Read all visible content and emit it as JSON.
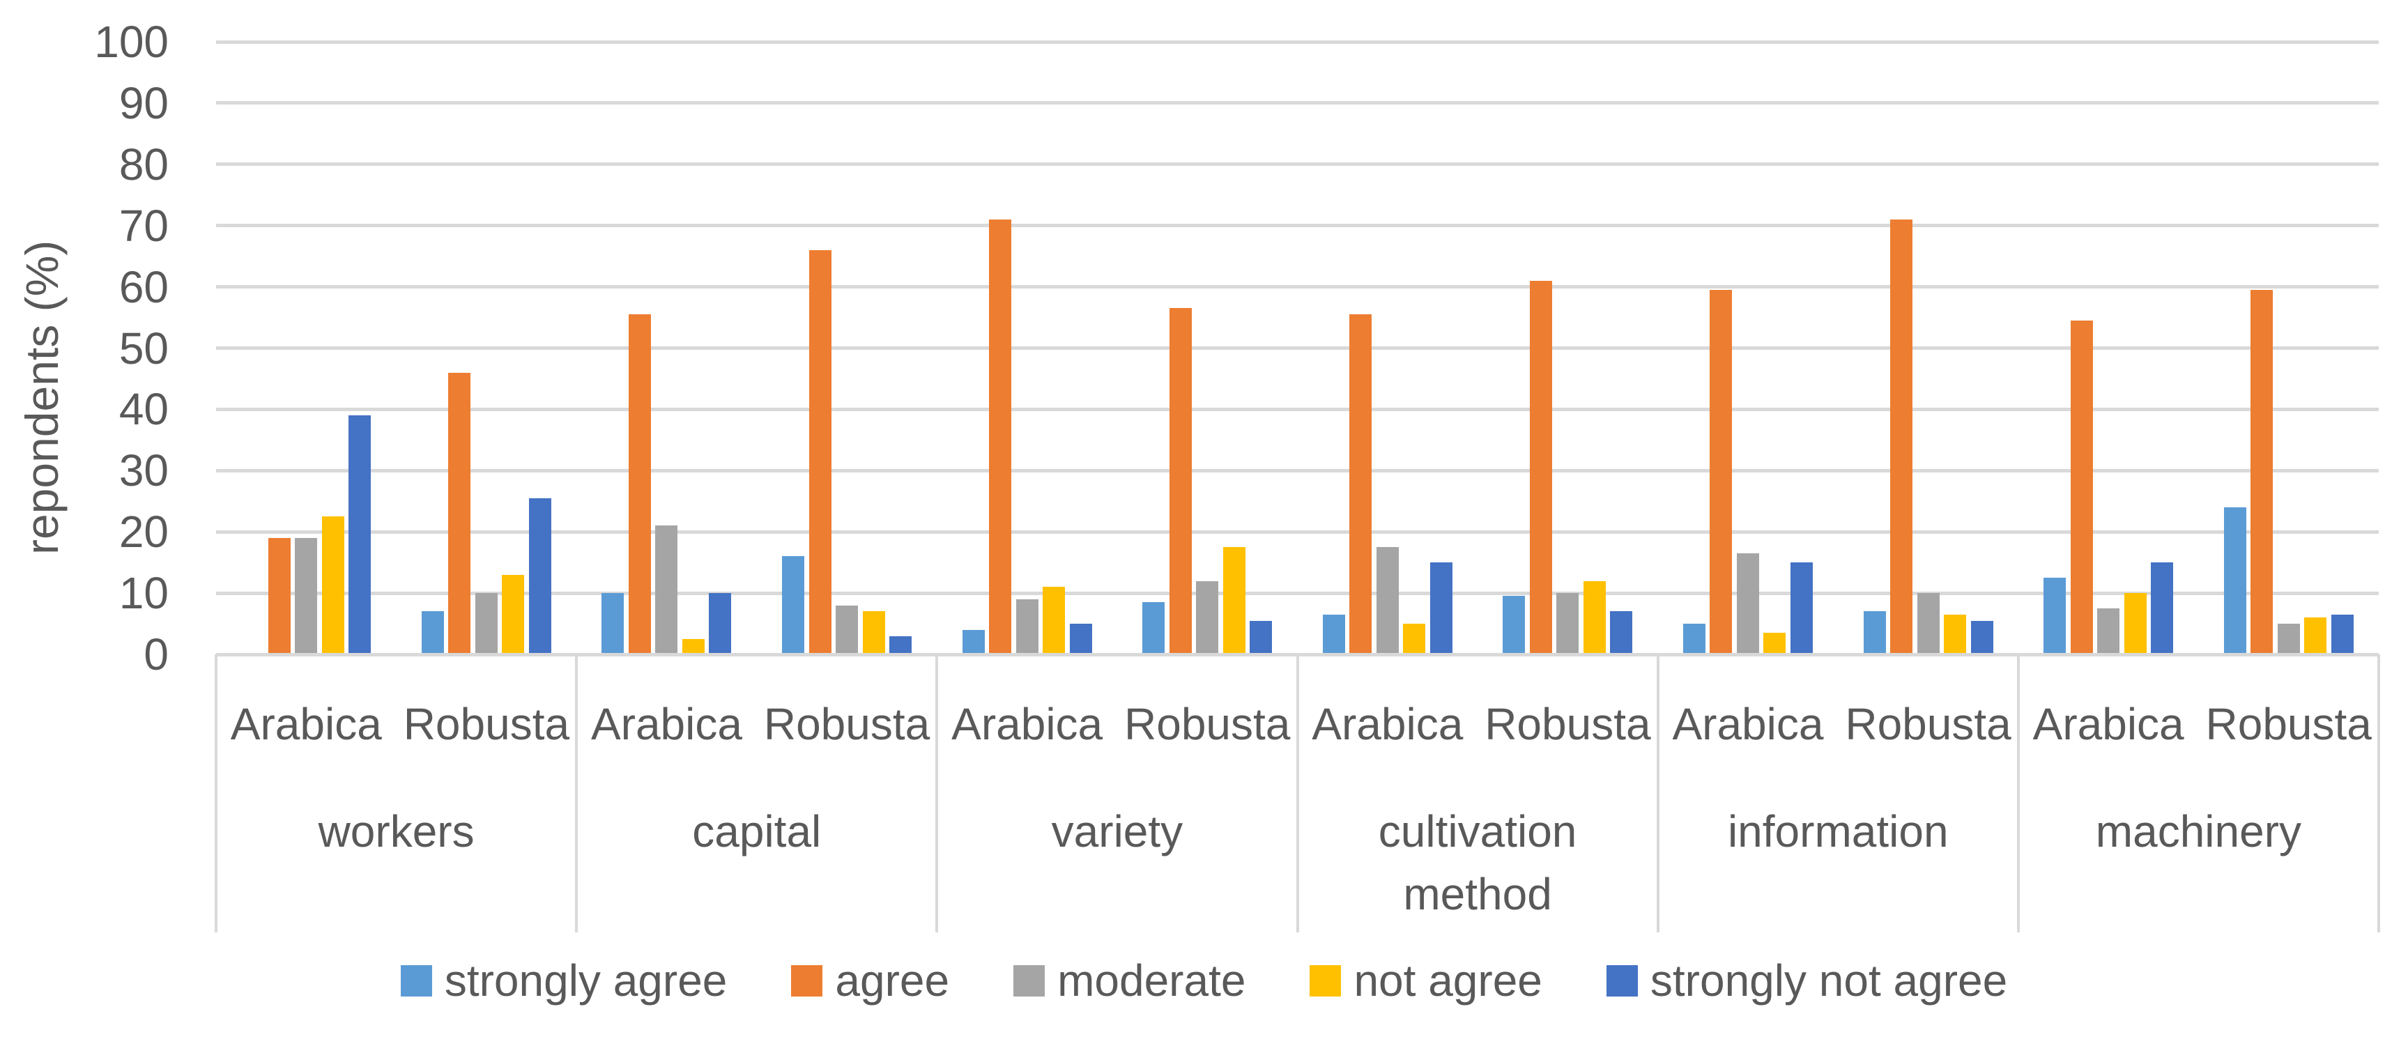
{
  "y_axis": {
    "title": "repondents (%)",
    "ticks": [
      0,
      10,
      20,
      30,
      40,
      50,
      60,
      70,
      80,
      90,
      100
    ],
    "max": 100
  },
  "styles": {
    "grid_color": "#D9D9D9",
    "text_color": "#595959",
    "background": "#ffffff"
  },
  "legend": {
    "items": [
      "strongly agree",
      "agree",
      "moderate",
      "not agree",
      "strongly not agree"
    ]
  },
  "chart_data": {
    "type": "bar",
    "title": "",
    "xlabel": "",
    "ylabel": "repondents (%)",
    "ylim": [
      0,
      100
    ],
    "grid": true,
    "legend_position": "bottom",
    "groups": [
      "workers",
      "capital",
      "variety",
      "cultivation method",
      "information",
      "machinery"
    ],
    "subgroups": [
      "Arabica",
      "Robusta"
    ],
    "value_order": "for each group: [Arabica, Robusta]",
    "series": [
      {
        "name": "strongly agree",
        "color": "#5B9BD5",
        "values": [
          0,
          7,
          10,
          16,
          4,
          8.5,
          6.5,
          9.5,
          5,
          7,
          12.5,
          24
        ]
      },
      {
        "name": "agree",
        "color": "#ED7D31",
        "values": [
          19,
          46,
          55.5,
          66,
          71,
          56.5,
          55.5,
          61,
          59.5,
          71,
          54.5,
          59.5
        ]
      },
      {
        "name": "moderate",
        "color": "#A5A5A5",
        "values": [
          19,
          10,
          21,
          8,
          9,
          12,
          17.5,
          10,
          16.5,
          10,
          7.5,
          5
        ]
      },
      {
        "name": "not agree",
        "color": "#FFC000",
        "values": [
          22.5,
          13,
          2.5,
          7,
          11,
          17.5,
          5,
          12,
          3.5,
          6.5,
          10,
          6
        ]
      },
      {
        "name": "strongly not agree",
        "color": "#4472C4",
        "values": [
          39,
          25.5,
          10,
          3,
          5,
          5.5,
          15,
          7,
          15,
          5.5,
          15,
          6.5
        ]
      }
    ]
  }
}
